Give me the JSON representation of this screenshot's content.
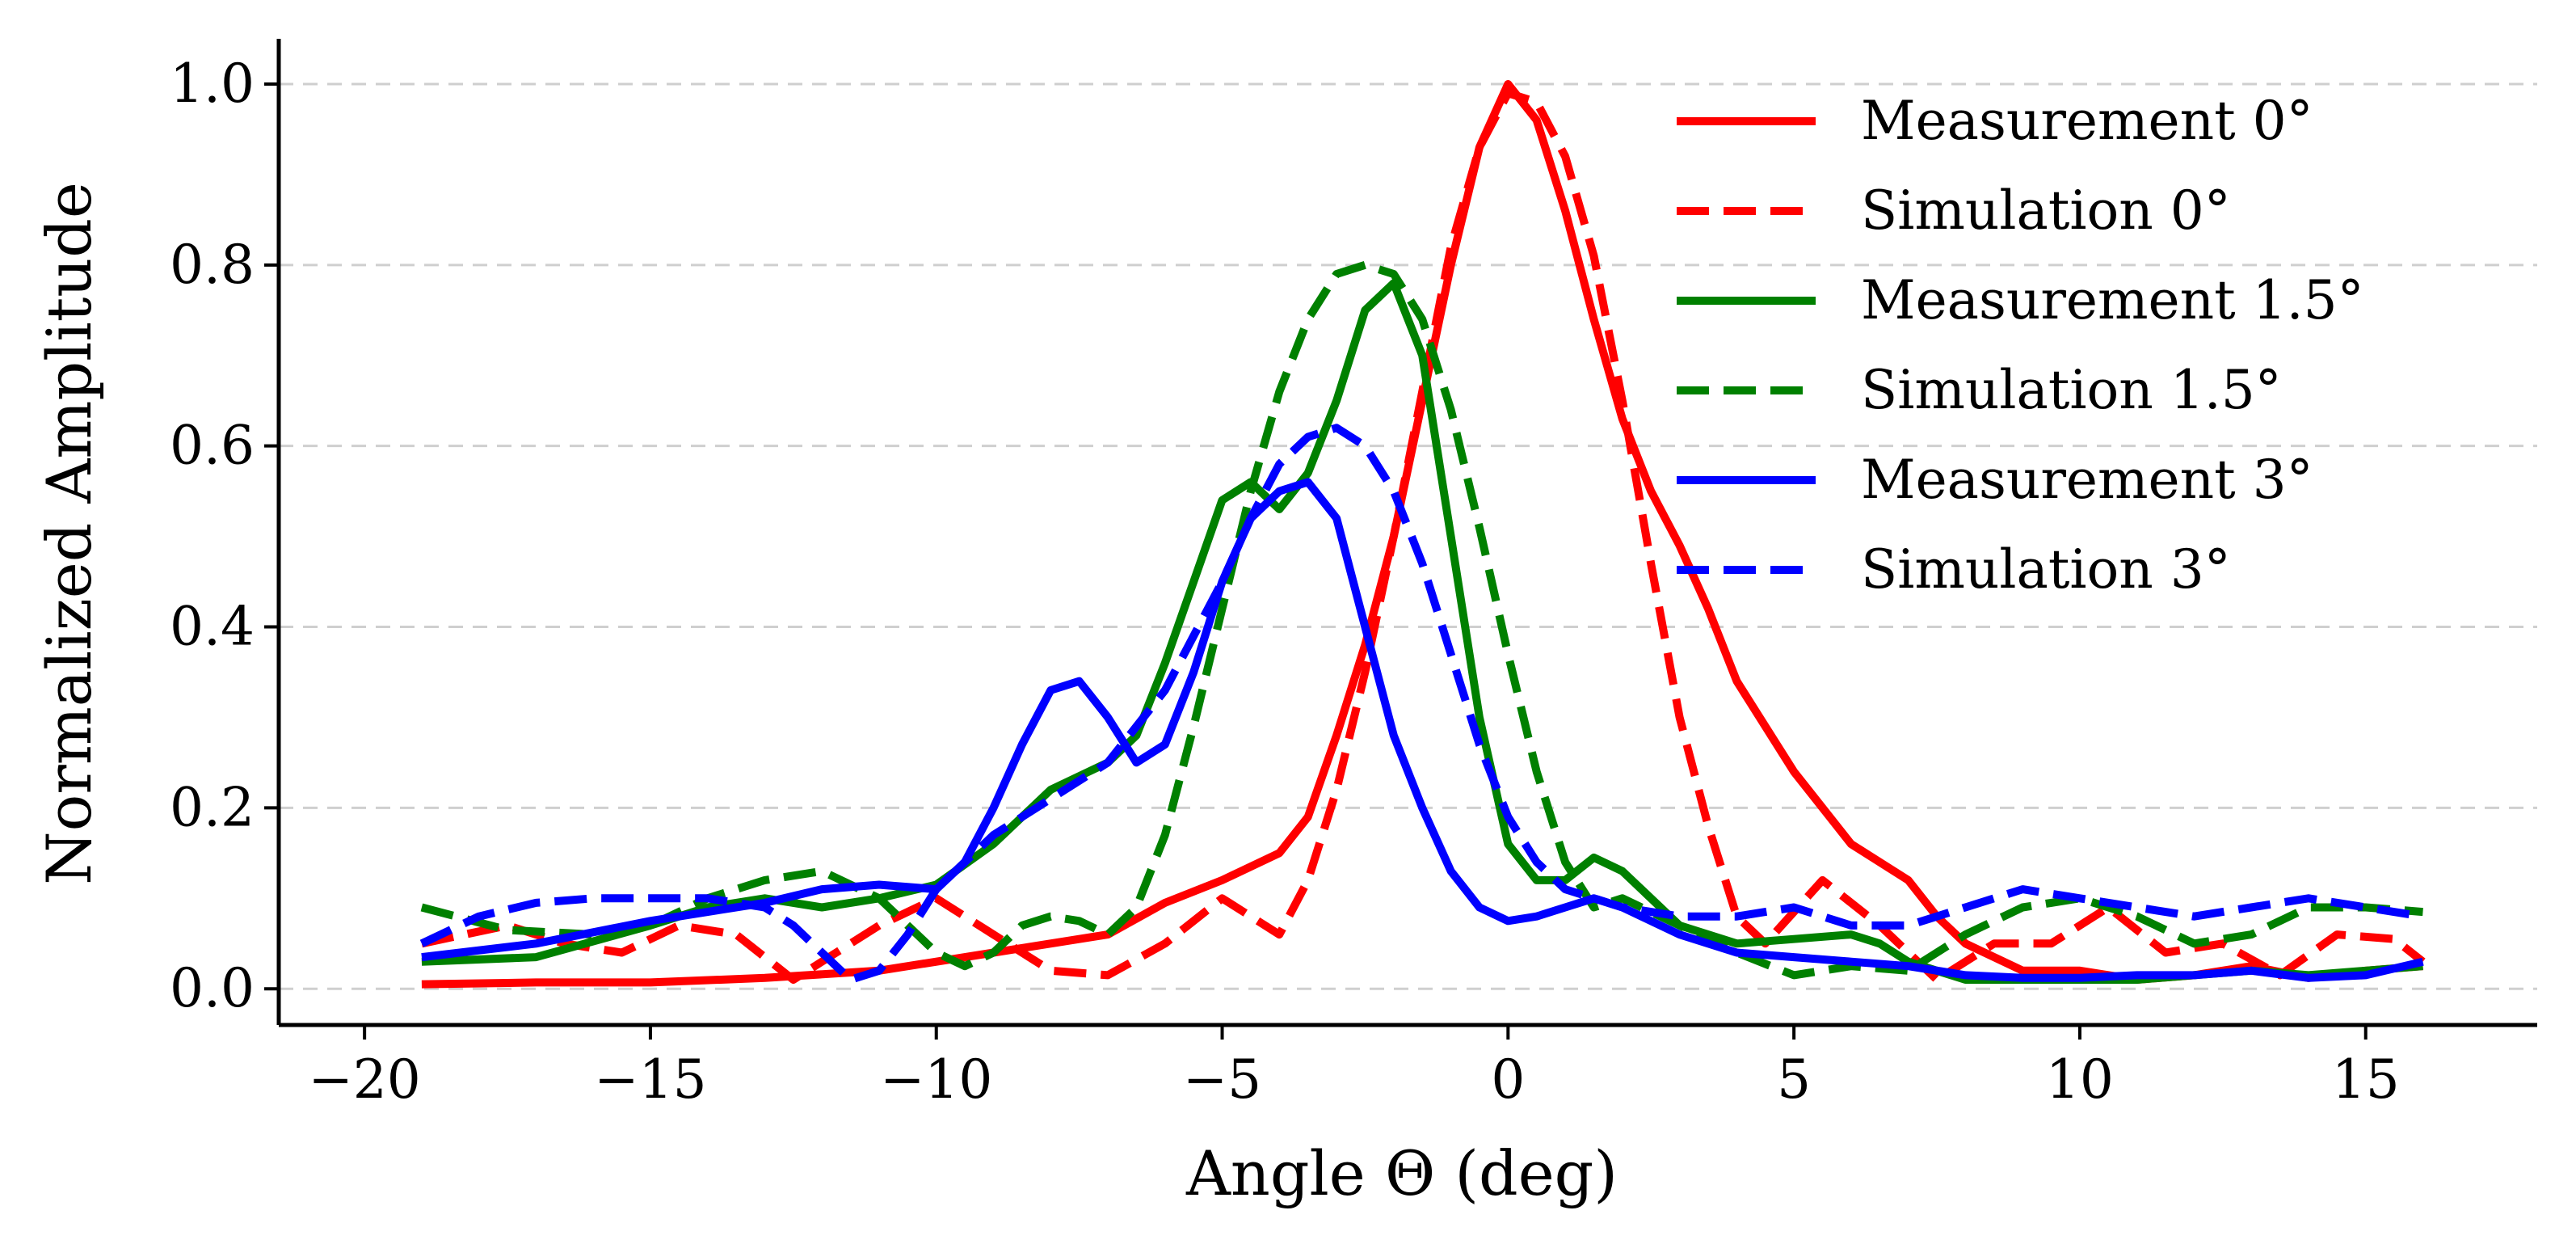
{
  "chart_data": {
    "type": "line",
    "title": "",
    "xlabel": "Angle Θ (deg)",
    "ylabel": "Normalized Amplitude",
    "xlim": [
      -21.5,
      18
    ],
    "ylim": [
      -0.04,
      1.05
    ],
    "xticks": [
      -20,
      -15,
      -10,
      -5,
      0,
      5,
      10,
      15
    ],
    "xtick_labels": [
      "−20",
      "−15",
      "−10",
      "−5",
      "0",
      "5",
      "10",
      "15"
    ],
    "yticks": [
      0.0,
      0.2,
      0.4,
      0.6,
      0.8,
      1.0
    ],
    "ytick_labels": [
      "0.0",
      "0.2",
      "0.4",
      "0.6",
      "0.8",
      "1.0"
    ],
    "grid": "horizontal dashed",
    "legend_position": "top-right",
    "series": [
      {
        "name": "Measurement 0°",
        "color": "#ff0000",
        "dash": "solid",
        "x": [
          -19,
          -17,
          -15,
          -13,
          -11,
          -9,
          -7,
          -6,
          -5,
          -4,
          -3.5,
          -3,
          -2.5,
          -2,
          -1.5,
          -1,
          -0.5,
          0,
          0.5,
          1,
          1.5,
          2,
          2.5,
          3,
          3.5,
          4,
          5,
          6,
          7,
          7.5,
          8,
          9,
          10,
          11,
          12,
          13,
          14,
          15,
          16
        ],
        "y": [
          0.005,
          0.007,
          0.007,
          0.012,
          0.02,
          0.04,
          0.06,
          0.095,
          0.12,
          0.15,
          0.19,
          0.28,
          0.38,
          0.5,
          0.65,
          0.8,
          0.93,
          1.0,
          0.96,
          0.86,
          0.74,
          0.63,
          0.55,
          0.49,
          0.42,
          0.34,
          0.24,
          0.16,
          0.12,
          0.08,
          0.05,
          0.02,
          0.02,
          0.01,
          0.015,
          0.025,
          0.012,
          0.02,
          0.025
        ]
      },
      {
        "name": "Simulation 0°",
        "color": "#ff0000",
        "dash": "dashed",
        "x": [
          -19,
          -17.5,
          -16.5,
          -15.5,
          -14.5,
          -13.5,
          -12.5,
          -11,
          -10,
          -9,
          -8,
          -7,
          -6,
          -5,
          -4,
          -3.5,
          -3,
          -2.5,
          -2,
          -1.5,
          -1,
          -0.5,
          0,
          0.5,
          1,
          1.5,
          2,
          2.5,
          3,
          3.5,
          4,
          4.5,
          5.5,
          6.5,
          7.5,
          8.5,
          9.5,
          10.5,
          11.5,
          12.5,
          13.5,
          14.5,
          15.5,
          16
        ],
        "y": [
          0.05,
          0.07,
          0.05,
          0.04,
          0.07,
          0.06,
          0.01,
          0.07,
          0.1,
          0.06,
          0.02,
          0.015,
          0.05,
          0.1,
          0.06,
          0.12,
          0.22,
          0.35,
          0.5,
          0.66,
          0.82,
          0.93,
          0.99,
          0.98,
          0.92,
          0.81,
          0.65,
          0.47,
          0.3,
          0.18,
          0.08,
          0.05,
          0.12,
          0.07,
          0.01,
          0.05,
          0.05,
          0.09,
          0.04,
          0.05,
          0.015,
          0.06,
          0.055,
          0.03
        ]
      },
      {
        "name": "Measurement 1.5°",
        "color": "#008000",
        "dash": "solid",
        "x": [
          -19,
          -17,
          -15,
          -14,
          -13,
          -12,
          -11,
          -10,
          -9,
          -8,
          -7,
          -6.5,
          -6,
          -5.5,
          -5,
          -4.5,
          -4,
          -3.5,
          -3,
          -2.5,
          -2,
          -1.5,
          -1,
          -0.5,
          0,
          0.5,
          1,
          1.5,
          2,
          3,
          4,
          5,
          6,
          6.5,
          7,
          8,
          9,
          10,
          11,
          12,
          13,
          14,
          15,
          16
        ],
        "y": [
          0.03,
          0.035,
          0.07,
          0.09,
          0.1,
          0.09,
          0.1,
          0.115,
          0.16,
          0.22,
          0.25,
          0.28,
          0.36,
          0.45,
          0.54,
          0.56,
          0.53,
          0.57,
          0.65,
          0.75,
          0.78,
          0.7,
          0.5,
          0.3,
          0.16,
          0.12,
          0.12,
          0.145,
          0.13,
          0.07,
          0.05,
          0.055,
          0.06,
          0.05,
          0.03,
          0.01,
          0.01,
          0.01,
          0.01,
          0.015,
          0.02,
          0.015,
          0.02,
          0.025
        ]
      },
      {
        "name": "Simulation 1.5°",
        "color": "#008000",
        "dash": "dashed",
        "x": [
          -19,
          -17.5,
          -16,
          -15,
          -14,
          -13,
          -12,
          -11,
          -10,
          -9.5,
          -9,
          -8.5,
          -8,
          -7.5,
          -7,
          -6.5,
          -6,
          -5.5,
          -5,
          -4.5,
          -4,
          -3.5,
          -3,
          -2.5,
          -2,
          -1.5,
          -1,
          -0.5,
          0,
          0.5,
          1,
          1.5,
          2,
          3,
          4,
          5,
          6,
          7,
          8,
          9,
          10,
          11,
          12,
          13,
          14,
          15,
          16
        ],
        "y": [
          0.09,
          0.065,
          0.06,
          0.07,
          0.1,
          0.12,
          0.13,
          0.1,
          0.04,
          0.025,
          0.04,
          0.07,
          0.08,
          0.075,
          0.06,
          0.09,
          0.17,
          0.29,
          0.42,
          0.55,
          0.66,
          0.74,
          0.79,
          0.8,
          0.79,
          0.74,
          0.64,
          0.51,
          0.37,
          0.24,
          0.14,
          0.09,
          0.1,
          0.07,
          0.04,
          0.015,
          0.025,
          0.02,
          0.06,
          0.09,
          0.1,
          0.08,
          0.05,
          0.06,
          0.09,
          0.09,
          0.085
        ]
      },
      {
        "name": "Measurement 3°",
        "color": "#0000ff",
        "dash": "solid",
        "x": [
          -19,
          -17,
          -15,
          -13,
          -12,
          -11,
          -10,
          -9.5,
          -9,
          -8.5,
          -8,
          -7.5,
          -7,
          -6.5,
          -6,
          -5.5,
          -5,
          -4.5,
          -4,
          -3.5,
          -3,
          -2.5,
          -2,
          -1.5,
          -1,
          -0.5,
          0,
          0.5,
          1,
          1.5,
          2,
          3,
          4,
          5,
          6,
          7,
          8,
          9,
          10,
          11,
          12,
          13,
          14,
          15,
          16
        ],
        "y": [
          0.035,
          0.05,
          0.075,
          0.095,
          0.11,
          0.115,
          0.11,
          0.14,
          0.2,
          0.27,
          0.33,
          0.34,
          0.3,
          0.25,
          0.27,
          0.35,
          0.45,
          0.52,
          0.55,
          0.56,
          0.52,
          0.4,
          0.28,
          0.2,
          0.13,
          0.09,
          0.075,
          0.08,
          0.09,
          0.1,
          0.09,
          0.06,
          0.04,
          0.035,
          0.03,
          0.025,
          0.015,
          0.012,
          0.012,
          0.015,
          0.015,
          0.02,
          0.012,
          0.015,
          0.03
        ]
      },
      {
        "name": "Simulation 3°",
        "color": "#0000ff",
        "dash": "dashed",
        "x": [
          -19,
          -18,
          -17,
          -16,
          -15,
          -14,
          -13,
          -12.5,
          -12,
          -11.5,
          -11,
          -10.5,
          -10,
          -9.5,
          -9,
          -8,
          -7,
          -6,
          -5,
          -4.5,
          -4,
          -3.5,
          -3,
          -2.5,
          -2,
          -1.5,
          -1,
          -0.5,
          0,
          0.5,
          1,
          1.5,
          2,
          3,
          4,
          5,
          6,
          7,
          8,
          9,
          10,
          11,
          12,
          13,
          14,
          15,
          16
        ],
        "y": [
          0.05,
          0.08,
          0.095,
          0.1,
          0.1,
          0.1,
          0.09,
          0.07,
          0.04,
          0.01,
          0.02,
          0.06,
          0.11,
          0.14,
          0.17,
          0.21,
          0.25,
          0.33,
          0.45,
          0.52,
          0.58,
          0.61,
          0.62,
          0.6,
          0.55,
          0.47,
          0.37,
          0.27,
          0.19,
          0.14,
          0.11,
          0.1,
          0.09,
          0.08,
          0.08,
          0.09,
          0.07,
          0.07,
          0.09,
          0.11,
          0.1,
          0.09,
          0.08,
          0.09,
          0.1,
          0.09,
          0.08
        ]
      }
    ]
  }
}
